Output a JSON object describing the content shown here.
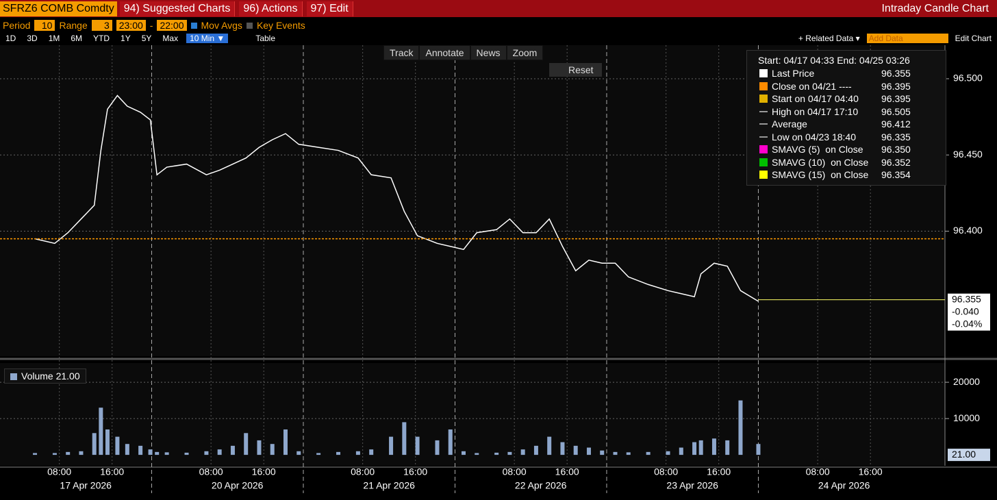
{
  "toolbar": {
    "ticker": "SFRZ6 COMB Comdty",
    "menus": [
      "94) Suggested Charts",
      "96) Actions",
      "97) Edit"
    ],
    "chart_title": "Intraday Candle Chart"
  },
  "settings": {
    "period_label": "Period",
    "period": "10",
    "range_label": "Range",
    "range": "3",
    "from": "23:00",
    "dash": "-",
    "to": "22:00",
    "mov_avgs": "Mov Avgs",
    "key_events": "Key Events"
  },
  "ranges": [
    "1D",
    "3D",
    "1M",
    "6M",
    "YTD",
    "1Y",
    "5Y",
    "Max"
  ],
  "interval": "10 Min ▼",
  "table": "Table",
  "related_data": "+ Related Data ▾",
  "add_data": "Add Data",
  "edit_chart": "Edit Chart",
  "tools": [
    "Track",
    "Annotate",
    "News",
    "Zoom"
  ],
  "reset": "Reset",
  "legend": {
    "header": "Start: 04/17 04:33 End: 04/25 03:26",
    "items": [
      {
        "label": "Last Price",
        "value": "96.355",
        "color": "#ffffff"
      },
      {
        "label": "Close on 04/21 ----",
        "value": "96.395",
        "color": "#ff8c00"
      },
      {
        "label": "Start on 04/17 04:40",
        "value": "96.395",
        "color": "#e0b000"
      },
      {
        "label": "High on 04/17 17:10",
        "value": "96.505"
      },
      {
        "label": "Average",
        "value": "96.412"
      },
      {
        "label": "Low on 04/23 18:40",
        "value": "96.335"
      },
      {
        "label": "SMAVG (5)  on Close",
        "value": "96.350",
        "color": "#ff00cc"
      },
      {
        "label": "SMAVG (10)  on Close",
        "value": "96.352",
        "color": "#00c000"
      },
      {
        "label": "SMAVG (15)  on Close",
        "value": "96.354",
        "color": "#ffff00"
      }
    ]
  },
  "chart_data": [
    {
      "type": "line",
      "x": [
        5.3,
        8.3,
        10.3,
        12.3,
        14.3,
        15.3,
        16.3,
        17.8,
        19.3,
        21.3,
        22.8,
        23.8,
        25.3,
        28.3,
        31.3,
        33.3,
        35.3,
        37.3,
        39.3,
        41.3,
        43.3,
        45.3,
        48.3,
        51.3,
        54.3,
        56.3,
        59.3,
        61.3,
        63.3,
        66.3,
        68.3,
        70.3,
        72.3,
        75.3,
        77.3,
        79.3,
        81.3,
        83.3,
        85.3,
        87.3,
        89.3,
        91.3,
        93.3,
        95.3,
        98.3,
        101.3,
        103.3,
        105.3,
        106.3,
        108.3,
        110.3,
        112.3,
        115.0
      ],
      "values": [
        96.395,
        96.392,
        96.399,
        96.408,
        96.417,
        96.453,
        96.48,
        96.489,
        96.482,
        96.478,
        96.473,
        96.437,
        96.442,
        96.444,
        96.437,
        96.44,
        96.444,
        96.448,
        96.455,
        96.46,
        96.464,
        96.457,
        96.455,
        96.453,
        96.448,
        96.437,
        96.435,
        96.413,
        96.397,
        96.392,
        96.39,
        96.388,
        96.399,
        96.401,
        96.408,
        96.399,
        96.399,
        96.408,
        96.39,
        96.374,
        96.381,
        96.379,
        96.379,
        96.37,
        96.365,
        96.361,
        96.359,
        96.357,
        96.372,
        96.379,
        96.377,
        96.361,
        96.354
      ],
      "color": "#ffffff",
      "xlim": [
        0,
        143.3
      ],
      "ylim": [
        96.318,
        96.522
      ],
      "yticks": [
        {
          "value": 96.5,
          "label": "96.500"
        },
        {
          "value": 96.45,
          "label": "96.450"
        },
        {
          "value": 96.4,
          "label": "96.400"
        }
      ],
      "grid": true,
      "close_line": {
        "value": 96.395,
        "color": "#ff9900"
      },
      "last_price": {
        "value": 96.355,
        "label": "96.355",
        "color": "#ffff66"
      },
      "change": "-0.040",
      "change_pct": "-0.04%"
    },
    {
      "type": "bar",
      "x": [
        5.3,
        8.3,
        10.3,
        12.3,
        14.3,
        15.3,
        16.3,
        17.8,
        19.3,
        21.3,
        22.8,
        23.8,
        25.3,
        28.3,
        31.3,
        33.3,
        35.3,
        37.3,
        39.3,
        41.3,
        43.3,
        45.3,
        48.3,
        51.3,
        54.3,
        56.3,
        59.3,
        61.3,
        63.3,
        66.3,
        68.3,
        70.3,
        72.3,
        75.3,
        77.3,
        79.3,
        81.3,
        83.3,
        85.3,
        87.3,
        89.3,
        91.3,
        93.3,
        95.3,
        98.3,
        101.3,
        103.3,
        105.3,
        106.3,
        108.3,
        110.3,
        112.3,
        115.0
      ],
      "values": [
        500,
        500,
        800,
        1000,
        6000,
        13000,
        7000,
        5000,
        3000,
        2500,
        1500,
        800,
        700,
        600,
        1000,
        1500,
        2500,
        6000,
        4000,
        3000,
        7000,
        1000,
        500,
        800,
        1000,
        1500,
        5000,
        9000,
        5000,
        4000,
        7000,
        1000,
        500,
        600,
        800,
        1500,
        2500,
        5000,
        3500,
        2500,
        2000,
        1200,
        800,
        700,
        800,
        1000,
        2000,
        3500,
        4000,
        4500,
        4000,
        15000,
        3000
      ],
      "color": "#8ea7cc",
      "series_name": "Volume",
      "last_value": "21.00",
      "ylim": [
        -3000,
        25300
      ],
      "yticks": [
        20000,
        10000
      ],
      "grid": true
    }
  ],
  "xaxis": {
    "xlim": [
      0,
      143.3
    ],
    "xticks": [
      {
        "value": 9,
        "label": "08:00"
      },
      {
        "value": 17,
        "label": "16:00"
      },
      {
        "value": 32,
        "label": "08:00"
      },
      {
        "value": 40,
        "label": "16:00"
      },
      {
        "value": 55,
        "label": "08:00"
      },
      {
        "value": 63,
        "label": "16:00"
      },
      {
        "value": 78,
        "label": "08:00"
      },
      {
        "value": 86,
        "label": "16:00"
      },
      {
        "value": 101,
        "label": "08:00"
      },
      {
        "value": 109,
        "label": "16:00"
      },
      {
        "value": 124,
        "label": "08:00"
      },
      {
        "value": 132,
        "label": "16:00"
      }
    ],
    "dates": [
      {
        "value": 13,
        "label": "17 Apr 2026"
      },
      {
        "value": 36,
        "label": "20 Apr 2026"
      },
      {
        "value": 59,
        "label": "21 Apr 2026"
      },
      {
        "value": 82,
        "label": "22 Apr 2026"
      },
      {
        "value": 105,
        "label": "23 Apr 2026"
      },
      {
        "value": 128,
        "label": "24 Apr 2026"
      }
    ],
    "day_breaks": [
      23,
      46,
      69,
      92,
      115
    ]
  }
}
